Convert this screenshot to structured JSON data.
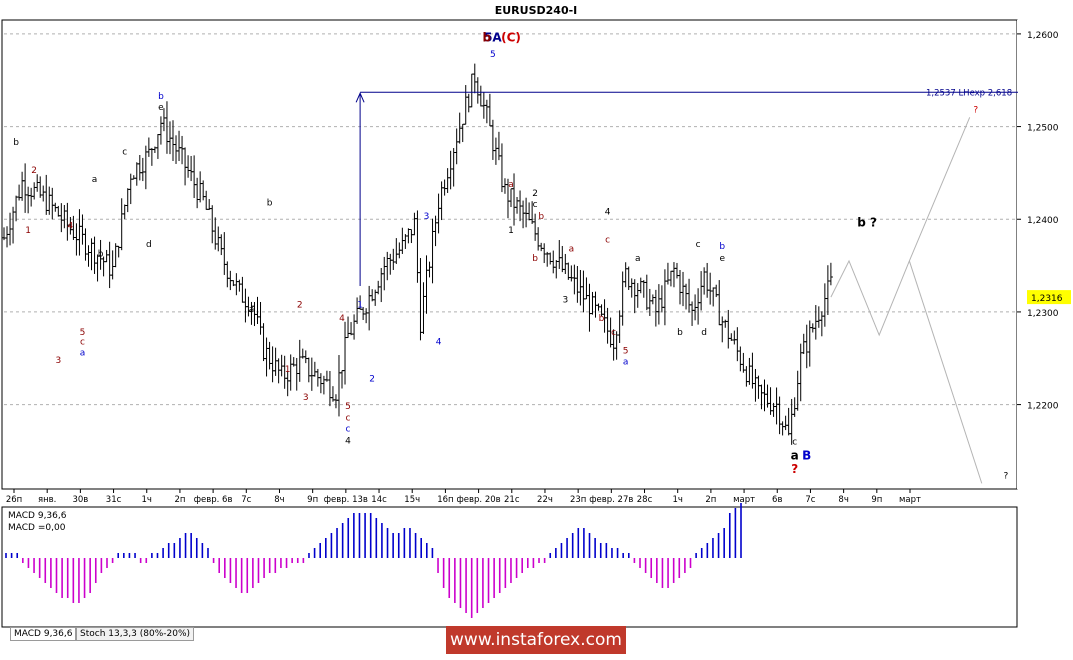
{
  "window": {
    "title": "EURUSD240-I"
  },
  "chart_data": {
    "type": "line",
    "title": "EURUSD240-I",
    "ylabel": "",
    "xlabel": "",
    "y_ticks": [
      "1,2600",
      "1,2500",
      "1,2400",
      "1,2300",
      "1,2200"
    ],
    "ylim": [
      1.211,
      1.2615
    ],
    "current_price": "1,2316",
    "x_tick_labels": [
      "26п",
      "янв.",
      "30в",
      "31с",
      "1ч",
      "2п",
      "февр. 6в",
      "7с",
      "8ч",
      "9п",
      "февр. 13в",
      "14с",
      "15ч",
      "16п",
      "февр. 20в",
      "21с",
      "22ч",
      "23п",
      "февр. 27в",
      "28с",
      "1ч",
      "2п",
      "март",
      "6в",
      "7с",
      "8ч",
      "9п",
      "март"
    ],
    "price_path": [
      [
        0,
        1.238
      ],
      [
        3,
        1.244
      ],
      [
        7,
        1.242
      ],
      [
        11,
        1.239
      ],
      [
        15,
        1.2365
      ],
      [
        18,
        1.2345
      ],
      [
        21,
        1.245
      ],
      [
        24,
        1.247
      ],
      [
        26,
        1.2505
      ],
      [
        29,
        1.247
      ],
      [
        33,
        1.242
      ],
      [
        36,
        1.236
      ],
      [
        39,
        1.232
      ],
      [
        41,
        1.231
      ],
      [
        43,
        1.226
      ],
      [
        46,
        1.223
      ],
      [
        49,
        1.2245
      ],
      [
        52,
        1.223
      ],
      [
        55,
        1.2215
      ],
      [
        57,
        1.2275
      ],
      [
        60,
        1.231
      ],
      [
        63,
        1.235
      ],
      [
        66,
        1.237
      ],
      [
        68,
        1.2395
      ],
      [
        69,
        1.229
      ],
      [
        72,
        1.242
      ],
      [
        75,
        1.249
      ],
      [
        78,
        1.2555
      ],
      [
        80,
        1.251
      ],
      [
        83,
        1.243
      ],
      [
        86,
        1.2405
      ],
      [
        89,
        1.2375
      ],
      [
        92,
        1.235
      ],
      [
        95,
        1.2325
      ],
      [
        98,
        1.23
      ],
      [
        101,
        1.227
      ],
      [
        103,
        1.234
      ],
      [
        106,
        1.232
      ],
      [
        108,
        1.23
      ],
      [
        111,
        1.2345
      ],
      [
        114,
        1.23
      ],
      [
        116,
        1.234
      ],
      [
        119,
        1.229
      ],
      [
        122,
        1.225
      ],
      [
        125,
        1.221
      ],
      [
        128,
        1.22
      ],
      [
        130,
        1.2165
      ],
      [
        132,
        1.225
      ],
      [
        135,
        1.23
      ],
      [
        137,
        1.233
      ]
    ],
    "projection_path": [
      [
        137,
        1.2316
      ],
      [
        140,
        1.2355
      ],
      [
        145,
        1.2275
      ],
      [
        150,
        1.2355
      ],
      [
        160,
        1.251
      ],
      [
        150,
        1.2355
      ],
      [
        162,
        1.2115
      ]
    ],
    "target_line": {
      "label": "1,2537 LHexp 2,618",
      "value": 1.2537,
      "x_start": 59
    },
    "target_arrow": {
      "x": 59,
      "from": 1.2328,
      "to": 1.2537
    },
    "wave_labels": [
      {
        "text": "b",
        "x": 2,
        "y": 1.248,
        "color": "#000000"
      },
      {
        "text": "2",
        "x": 5,
        "y": 1.245,
        "color": "#8b0000"
      },
      {
        "text": "1",
        "x": 4,
        "y": 1.2385,
        "color": "#8b0000"
      },
      {
        "text": "4",
        "x": 11,
        "y": 1.239,
        "color": "#8b0000"
      },
      {
        "text": "3",
        "x": 9,
        "y": 1.2245,
        "color": "#8b0000"
      },
      {
        "text": "5",
        "x": 13,
        "y": 1.2275,
        "color": "#8b0000"
      },
      {
        "text": "c",
        "x": 13,
        "y": 1.2265,
        "color": "#8b0000"
      },
      {
        "text": "a",
        "x": 13,
        "y": 1.2253,
        "color": "#0000cc"
      },
      {
        "text": "a",
        "x": 15,
        "y": 1.244,
        "color": "#000000"
      },
      {
        "text": "b",
        "x": 16,
        "y": 1.236,
        "color": "#000000"
      },
      {
        "text": "c",
        "x": 20,
        "y": 1.247,
        "color": "#000000"
      },
      {
        "text": "d",
        "x": 24,
        "y": 1.237,
        "color": "#000000"
      },
      {
        "text": "b",
        "x": 26,
        "y": 1.253,
        "color": "#0000cc"
      },
      {
        "text": "e",
        "x": 26,
        "y": 1.2518,
        "color": "#000000"
      },
      {
        "text": "b",
        "x": 44,
        "y": 1.2415,
        "color": "#000000"
      },
      {
        "text": "a",
        "x": 41,
        "y": 1.23,
        "color": "#000000"
      },
      {
        "text": "2",
        "x": 49,
        "y": 1.2305,
        "color": "#8b0000"
      },
      {
        "text": "4",
        "x": 56,
        "y": 1.229,
        "color": "#8b0000"
      },
      {
        "text": "1",
        "x": 47,
        "y": 1.2235,
        "color": "#8b0000"
      },
      {
        "text": "3",
        "x": 50,
        "y": 1.2205,
        "color": "#8b0000"
      },
      {
        "text": "1",
        "x": 59,
        "y": 1.2305,
        "color": "#0000cc"
      },
      {
        "text": "2",
        "x": 61,
        "y": 1.2225,
        "color": "#0000cc"
      },
      {
        "text": "5",
        "x": 57,
        "y": 1.2195,
        "color": "#8b0000"
      },
      {
        "text": "c",
        "x": 57,
        "y": 1.2183,
        "color": "#8b0000"
      },
      {
        "text": "c",
        "x": 57,
        "y": 1.2171,
        "color": "#0000cc"
      },
      {
        "text": "4",
        "x": 57,
        "y": 1.2158,
        "color": "#000000"
      },
      {
        "text": "3",
        "x": 70,
        "y": 1.24,
        "color": "#0000cc"
      },
      {
        "text": "4",
        "x": 72,
        "y": 1.2265,
        "color": "#0000cc"
      },
      {
        "text": "5",
        "x": 81,
        "y": 1.2575,
        "color": "#0000cc"
      },
      {
        "text": "a",
        "x": 84,
        "y": 1.2435,
        "color": "#8b0000"
      },
      {
        "text": "1",
        "x": 84,
        "y": 1.2385,
        "color": "#000000"
      },
      {
        "text": "2",
        "x": 88,
        "y": 1.2425,
        "color": "#000000"
      },
      {
        "text": "c",
        "x": 88,
        "y": 1.2413,
        "color": "#000000"
      },
      {
        "text": "b",
        "x": 89,
        "y": 1.24,
        "color": "#8b0000"
      },
      {
        "text": "b",
        "x": 88,
        "y": 1.2355,
        "color": "#8b0000"
      },
      {
        "text": "a",
        "x": 94,
        "y": 1.2365,
        "color": "#8b0000"
      },
      {
        "text": "3",
        "x": 93,
        "y": 1.231,
        "color": "#000000"
      },
      {
        "text": "4",
        "x": 100,
        "y": 1.2405,
        "color": "#000000"
      },
      {
        "text": "c",
        "x": 100,
        "y": 1.2375,
        "color": "#8b0000"
      },
      {
        "text": "b",
        "x": 99,
        "y": 1.229,
        "color": "#8b0000"
      },
      {
        "text": "c",
        "x": 101,
        "y": 1.2275,
        "color": "#8b0000"
      },
      {
        "text": "5",
        "x": 103,
        "y": 1.2255,
        "color": "#8b0000"
      },
      {
        "text": "a",
        "x": 103,
        "y": 1.2243,
        "color": "#0000cc"
      },
      {
        "text": "a",
        "x": 105,
        "y": 1.2355,
        "color": "#000000"
      },
      {
        "text": "b",
        "x": 112,
        "y": 1.2275,
        "color": "#000000"
      },
      {
        "text": "c",
        "x": 115,
        "y": 1.237,
        "color": "#000000"
      },
      {
        "text": "d",
        "x": 116,
        "y": 1.2275,
        "color": "#000000"
      },
      {
        "text": "b",
        "x": 119,
        "y": 1.2368,
        "color": "#0000cc"
      },
      {
        "text": "e",
        "x": 119,
        "y": 1.2355,
        "color": "#000000"
      },
      {
        "text": "c",
        "x": 131,
        "y": 1.2157,
        "color": "#000000"
      },
      {
        "text": "?",
        "x": 161,
        "y": 1.2515,
        "color": "#cc0000"
      },
      {
        "text": "?",
        "x": 166,
        "y": 1.212,
        "color": "#000000"
      }
    ],
    "major_labels": [
      {
        "text": "5A",
        "x": 81,
        "y": 1.2592,
        "color": "#00008b"
      },
      {
        "text": "(C)",
        "x": 84,
        "y": 1.2592,
        "color": "#cc0000"
      },
      {
        "text": "b",
        "x": 80,
        "y": 1.2592,
        "color": "#8b0000"
      },
      {
        "text": "a",
        "x": 131,
        "y": 1.2141,
        "color": "#000000"
      },
      {
        "text": "B",
        "x": 133,
        "y": 1.2141,
        "color": "#0000cc"
      },
      {
        "text": "?",
        "x": 131,
        "y": 1.2126,
        "color": "#cc0000"
      },
      {
        "text": "b ?",
        "x": 143,
        "y": 1.2392,
        "color": "#000000"
      }
    ],
    "macd": {
      "label": "MACD 9,36,6",
      "value_label": "MACD =0,00",
      "values": [
        1,
        1,
        1,
        -1,
        -2,
        -3,
        -4,
        -5,
        -6,
        -7,
        -8,
        -8,
        -9,
        -9,
        -8,
        -7,
        -5,
        -3,
        -2,
        -1,
        1,
        1,
        1,
        1,
        -1,
        -1,
        1,
        1,
        2,
        3,
        3,
        4,
        5,
        5,
        4,
        3,
        2,
        -1,
        -3,
        -4,
        -5,
        -6,
        -7,
        -7,
        -6,
        -5,
        -4,
        -3,
        -3,
        -2,
        -2,
        -1,
        -1,
        -1,
        1,
        2,
        3,
        4,
        5,
        6,
        7,
        8,
        9,
        9,
        9,
        9,
        8,
        7,
        6,
        5,
        5,
        6,
        6,
        5,
        4,
        3,
        2,
        -3,
        -6,
        -8,
        -9,
        -10,
        -11,
        -12,
        -11,
        -10,
        -9,
        -8,
        -7,
        -6,
        -5,
        -4,
        -3,
        -2,
        -2,
        -1,
        -1,
        1,
        2,
        3,
        4,
        5,
        6,
        6,
        5,
        4,
        3,
        3,
        2,
        2,
        1,
        1,
        -1,
        -2,
        -3,
        -4,
        -5,
        -6,
        -6,
        -5,
        -4,
        -3,
        -2,
        1,
        2,
        3,
        4,
        5,
        6,
        9,
        10,
        11
      ]
    }
  },
  "tabs": [
    {
      "label": "MACD 9,36,6"
    },
    {
      "label": "Stoch 13,3,3 (80%-20%)"
    }
  ],
  "watermark": "www.instaforex.com",
  "colors": {
    "bars": "#000000",
    "target_line": "#00008b",
    "projection": "#b4b4b4",
    "macd_pos": "#0000cc",
    "macd_neg": "#cc00cc",
    "grid": "#b0b0b0",
    "watermark_bg": "#c0392b"
  }
}
